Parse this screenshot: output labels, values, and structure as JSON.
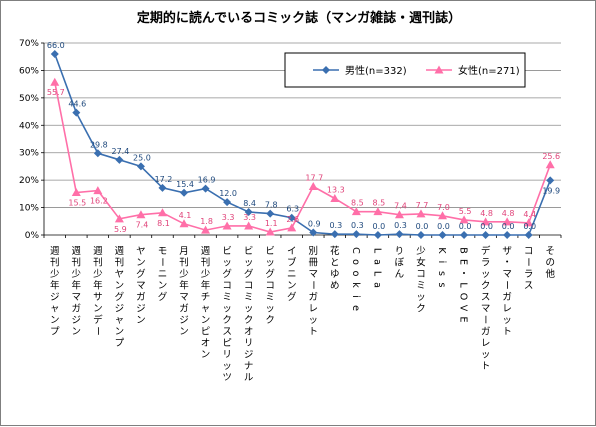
{
  "chart_data": {
    "type": "line",
    "title": "定期的に読んでいるコミック誌（マンガ雑誌・週刊誌）",
    "ylim": [
      0,
      70
    ],
    "yticks": [
      0,
      10,
      20,
      30,
      40,
      50,
      60,
      70
    ],
    "ytick_format": "%",
    "grid": true,
    "legend_position": "top-right",
    "categories": [
      "週刊少年ジャンプ",
      "週刊少年マガジン",
      "週刊少年サンデー",
      "週刊ヤングジャンプ",
      "ヤングマガジン",
      "モーニング",
      "月刊少年マガジン",
      "週刊少年チャンピオン",
      "ビッグコミックスピリッツ",
      "ビッグコミックオリジナル",
      "ビッグコミック",
      "イブニング",
      "別冊マーガレット",
      "花とゆめ",
      "Cookie",
      "LaLa",
      "りぼん",
      "少女コミック",
      "Kiss",
      "BE・LOVE",
      "デラックスマーガレット",
      "ザ・マーガレット",
      "コーラス",
      "その他"
    ],
    "series": [
      {
        "name": "男性(n=332)",
        "color": "#3a6fb0",
        "marker": "diamond",
        "values": [
          66.0,
          44.6,
          29.8,
          27.4,
          25.0,
          17.2,
          15.4,
          16.9,
          12.0,
          8.4,
          7.8,
          6.3,
          0.9,
          0.3,
          0.3,
          0.0,
          0.3,
          0.0,
          0.0,
          0.0,
          0.0,
          0.0,
          0.0,
          19.9
        ]
      },
      {
        "name": "女性(n=271)",
        "color": "#ff6fa8",
        "marker": "triangle",
        "values": [
          55.7,
          15.5,
          16.2,
          5.9,
          7.4,
          8.1,
          4.1,
          1.8,
          3.3,
          3.3,
          1.1,
          2.6,
          17.7,
          13.3,
          8.5,
          8.5,
          7.4,
          7.7,
          7.0,
          5.5,
          4.8,
          4.8,
          4.4,
          25.6
        ]
      }
    ]
  }
}
